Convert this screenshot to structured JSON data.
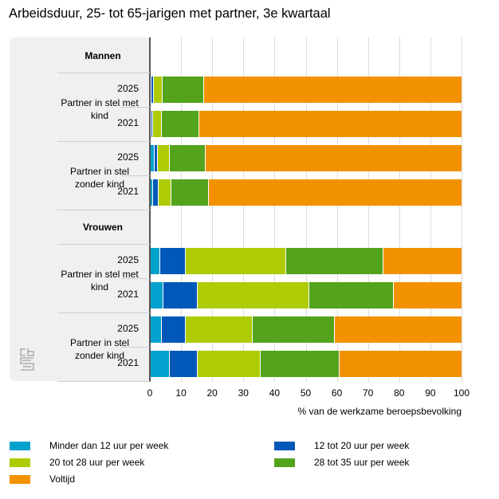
{
  "title": "Arbeidsduur, 25- tot 65-jarigen met partner, 3e kwartaal",
  "logo_text": "cbs",
  "chart_data": {
    "type": "bar",
    "orientation": "horizontal",
    "stacked": true,
    "title": "Arbeidsduur, 25- tot 65-jarigen met partner, 3e kwartaal",
    "xlabel": "% van de werkzame beroepsbevolking",
    "ylabel": "",
    "xlim": [
      0,
      100
    ],
    "xticks": [
      "0",
      "10",
      "20",
      "30",
      "40",
      "50",
      "60",
      "70",
      "80",
      "90",
      "100"
    ],
    "grid": true,
    "legend_position": "bottom",
    "groups": [
      {
        "name": "Mannen",
        "categories": [
          {
            "name": "Partner in stel met kind",
            "years": [
              "2025",
              "2021"
            ]
          },
          {
            "name": "Partner in stel zonder kind",
            "years": [
              "2025",
              "2021"
            ]
          }
        ]
      },
      {
        "name": "Vrouwen",
        "categories": [
          {
            "name": "Partner in stel met kind",
            "years": [
              "2025",
              "2021"
            ]
          },
          {
            "name": "Partner in stel zonder kind",
            "years": [
              "2025",
              "2021"
            ]
          }
        ]
      }
    ],
    "rows": [
      {
        "group": "Mannen",
        "category": "Partner in stel met kind",
        "year": "2025"
      },
      {
        "group": "Mannen",
        "category": "Partner in stel met kind",
        "year": "2021"
      },
      {
        "group": "Mannen",
        "category": "Partner in stel zonder kind",
        "year": "2025"
      },
      {
        "group": "Mannen",
        "category": "Partner in stel zonder kind",
        "year": "2021"
      },
      {
        "group": "Vrouwen",
        "category": "Partner in stel met kind",
        "year": "2025"
      },
      {
        "group": "Vrouwen",
        "category": "Partner in stel met kind",
        "year": "2021"
      },
      {
        "group": "Vrouwen",
        "category": "Partner in stel zonder kind",
        "year": "2025"
      },
      {
        "group": "Vrouwen",
        "category": "Partner in stel zonder kind",
        "year": "2021"
      }
    ],
    "series": [
      {
        "name": "Minder dan 12 uur per week",
        "color": "#00a1cd",
        "values": [
          0.5,
          0.5,
          1.5,
          1.0,
          3.3,
          4.3,
          3.8,
          6.4
        ]
      },
      {
        "name": "12 tot 20 uur per week",
        "color": "#0058b8",
        "values": [
          0.8,
          0.5,
          1.1,
          1.8,
          8.2,
          11.0,
          7.7,
          9.0
        ]
      },
      {
        "name": "20 tot 28 uur per week",
        "color": "#afcb05",
        "values": [
          2.8,
          2.8,
          3.8,
          4.1,
          32.2,
          35.8,
          21.5,
          20.2
        ]
      },
      {
        "name": "28 tot 35 uur per week",
        "color": "#53a31d",
        "values": [
          13.3,
          12.0,
          11.6,
          12.0,
          31.2,
          27.1,
          26.3,
          25.3
        ]
      },
      {
        "name": "Voltijd",
        "color": "#f39200",
        "values": [
          82.6,
          84.2,
          82.0,
          81.1,
          25.1,
          21.8,
          40.7,
          39.1
        ]
      }
    ]
  }
}
